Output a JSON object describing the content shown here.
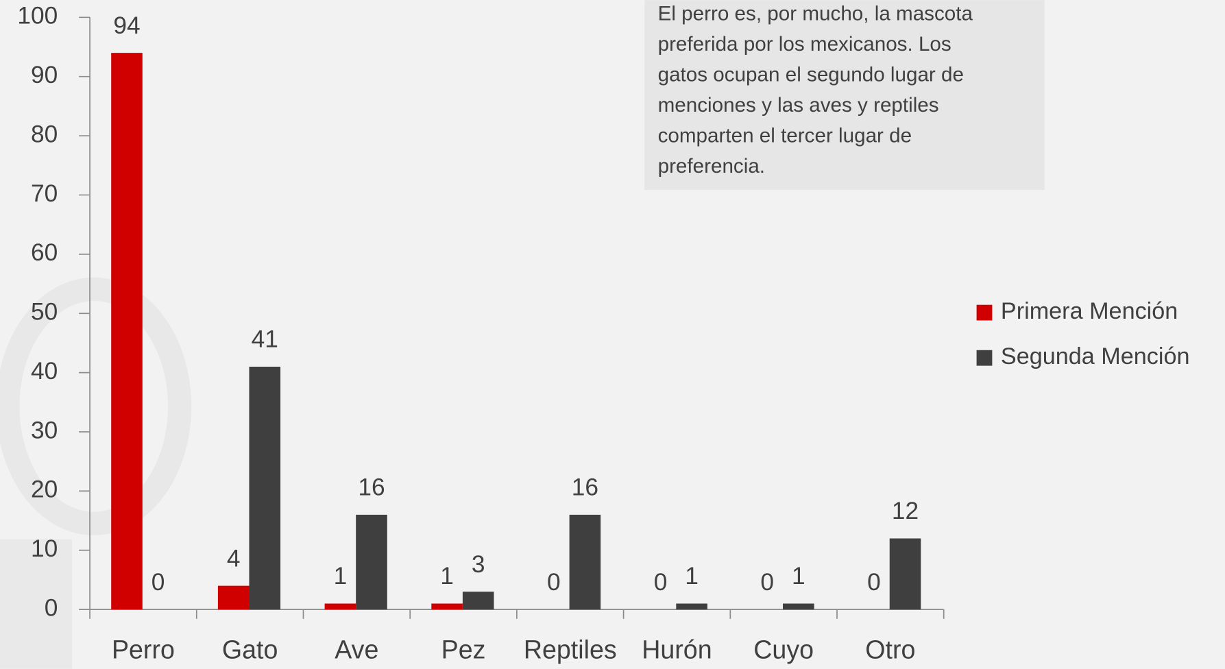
{
  "chart_data": {
    "type": "bar",
    "annotation": [
      "El perro es, por mucho, la mascota",
      "preferida por los mexicanos. Los",
      "gatos ocupan el segundo lugar de",
      "menciones y las aves y reptiles",
      "comparten el tercer lugar de",
      "preferencia."
    ],
    "categories": [
      "Perro",
      "Gato",
      "Ave",
      "Pez",
      "Reptiles",
      "Hurón",
      "Cuyo",
      "Otro"
    ],
    "series": [
      {
        "name": "Primera Mención",
        "color": "#d00000",
        "values": [
          94,
          4,
          1,
          1,
          0,
          0,
          0,
          0
        ]
      },
      {
        "name": "Segunda Mención",
        "color": "#3f3f3f",
        "values": [
          0,
          41,
          16,
          3,
          16,
          1,
          1,
          12
        ]
      }
    ],
    "ylim": [
      0,
      100
    ],
    "yticks": [
      0,
      10,
      20,
      30,
      40,
      50,
      60,
      70,
      80,
      90,
      100
    ],
    "legend": "right"
  }
}
